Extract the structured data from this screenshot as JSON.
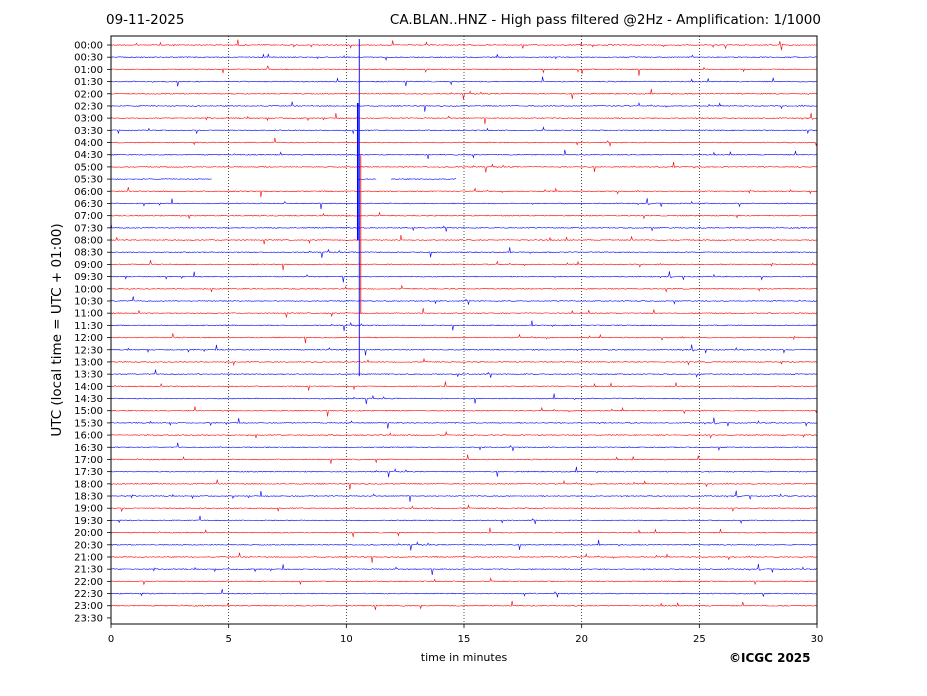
{
  "header": {
    "date": "09-11-2025",
    "title": "CA.BLAN..HNZ - High pass filtered @2Hz - Amplification: 1/1000"
  },
  "copyright": "©ICGC 2025",
  "chart_data": {
    "type": "line",
    "subtype": "helicorder",
    "xlabel": "time in minutes",
    "ylabel": "UTC (local time = UTC + 01:00)",
    "xlim": [
      0,
      30
    ],
    "x_ticks": [
      0,
      5,
      10,
      15,
      20,
      25,
      30
    ],
    "x_gridlines": [
      5,
      10,
      15,
      20,
      25
    ],
    "row_labels": [
      "00:00",
      "00:30",
      "01:00",
      "01:30",
      "02:00",
      "02:30",
      "03:00",
      "03:30",
      "04:00",
      "04:30",
      "05:00",
      "05:30",
      "06:00",
      "06:30",
      "07:00",
      "07:30",
      "08:00",
      "08:30",
      "09:00",
      "09:30",
      "10:00",
      "10:30",
      "11:00",
      "11:30",
      "12:00",
      "12:30",
      "13:00",
      "13:30",
      "14:00",
      "14:30",
      "15:00",
      "15:30",
      "16:00",
      "16:30",
      "17:00",
      "17:30",
      "18:00",
      "18:30",
      "19:00",
      "19:30",
      "20:00",
      "20:30",
      "21:00",
      "21:30",
      "22:00",
      "22:30",
      "23:00",
      "23:30"
    ],
    "visible_trace_rows": 47,
    "colors": [
      "#ff0000",
      "#0000ff"
    ],
    "gaps": [
      {
        "row": "05:30",
        "x_range": [
          4.3,
          10.5
        ]
      },
      {
        "row": "05:30",
        "x_range": [
          11.3,
          11.9
        ]
      },
      {
        "row": "05:30",
        "x_range": [
          14.7,
          30
        ]
      }
    ],
    "major_event": {
      "start_row": "00:00",
      "end_row": "13:30",
      "x_minutes": 10.55
    }
  }
}
